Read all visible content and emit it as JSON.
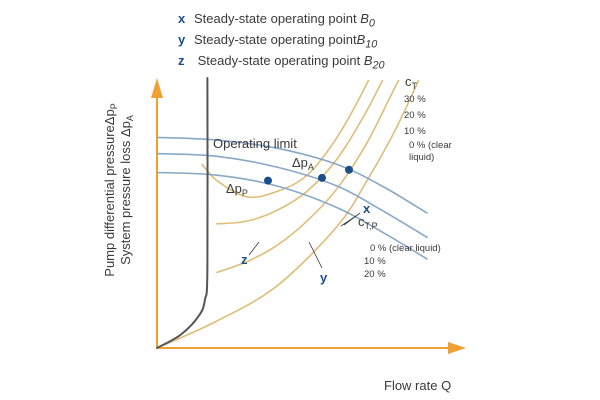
{
  "legend": [
    {
      "key": "x",
      "text": "Steady-state operating point ",
      "symbol": "B",
      "subscript": "0"
    },
    {
      "key": "y",
      "text": "Steady-state operating point",
      "symbol": "B",
      "subscript": "10"
    },
    {
      "key": "z",
      "text": " Steady-state operating point ",
      "symbol": "B",
      "subscript": "20"
    }
  ],
  "chart_data": {
    "type": "line",
    "title": "",
    "xlabel": "Flow rate  Q",
    "ylabel_line1": "Pump differential pressureΔp",
    "ylabel_line1_sub": "P",
    "ylabel_line2": "System pressure loss Δp",
    "ylabel_line2_sub": "A",
    "xlim": [
      0,
      100
    ],
    "ylim": [
      0,
      100
    ],
    "grid": false,
    "colors": {
      "axis": "#f0a030",
      "pump": "#88a8c8",
      "system": "#e0bc78",
      "limit": "#555555",
      "point": "#1b4f8a",
      "text": "#3a3a3a"
    },
    "operating_limit": {
      "label": "Operating limit",
      "points": [
        [
          0,
          0
        ],
        [
          8,
          5
        ],
        [
          14,
          12
        ],
        [
          16,
          18
        ],
        [
          16.8,
          30
        ],
        [
          16.8,
          100
        ]
      ]
    },
    "pump_curves": {
      "label": "Δp",
      "label_sub": "P",
      "group_label": "c",
      "group_label_sub": "T,P",
      "series": [
        {
          "name": "0 % (clear liquid)",
          "points": [
            [
              0,
              78
            ],
            [
              20,
              77
            ],
            [
              40,
              74
            ],
            [
              60,
              68
            ],
            [
              75,
              60
            ],
            [
              90,
              50
            ]
          ]
        },
        {
          "name": "10 %",
          "points": [
            [
              0,
              72
            ],
            [
              20,
              71
            ],
            [
              40,
              67
            ],
            [
              60,
              60
            ],
            [
              75,
              51
            ],
            [
              90,
              41
            ]
          ]
        },
        {
          "name": "20 %",
          "points": [
            [
              0,
              65
            ],
            [
              20,
              64
            ],
            [
              40,
              60
            ],
            [
              60,
              52
            ],
            [
              75,
              43
            ],
            [
              90,
              33
            ]
          ]
        }
      ]
    },
    "system_curves": {
      "label": "Δp",
      "label_sub": "A",
      "group_label": "c",
      "group_label_sub": "T",
      "series": [
        {
          "name": "30 %",
          "points": [
            [
              15,
              68
            ],
            [
              20,
              62
            ],
            [
              30,
              56
            ],
            [
              40,
              58
            ],
            [
              50,
              64
            ],
            [
              60,
              78
            ],
            [
              70,
              98
            ],
            [
              80,
              122
            ]
          ]
        },
        {
          "name": "20 %",
          "points": [
            [
              20,
              46
            ],
            [
              30,
              47
            ],
            [
              40,
              51
            ],
            [
              50,
              58
            ],
            [
              60,
              70
            ],
            [
              70,
              88
            ],
            [
              80,
              110
            ],
            [
              84,
              118
            ]
          ]
        },
        {
          "name": "10 %",
          "points": [
            [
              20,
              28
            ],
            [
              30,
              32
            ],
            [
              40,
              38
            ],
            [
              50,
              47
            ],
            [
              60,
              59
            ],
            [
              70,
              76
            ],
            [
              80,
              98
            ],
            [
              87,
              112
            ]
          ]
        },
        {
          "name": "0 % (clear liquid)",
          "points": [
            [
              0,
              0
            ],
            [
              20,
              10
            ],
            [
              40,
              23
            ],
            [
              60,
              45
            ],
            [
              70,
              62
            ],
            [
              80,
              82
            ],
            [
              90,
              106
            ]
          ]
        }
      ]
    },
    "operating_points": [
      {
        "label": "x",
        "x": 64,
        "y": 66
      },
      {
        "label": "y",
        "x": 55,
        "y": 63
      },
      {
        "label": "z",
        "x": 37,
        "y": 62
      }
    ]
  }
}
